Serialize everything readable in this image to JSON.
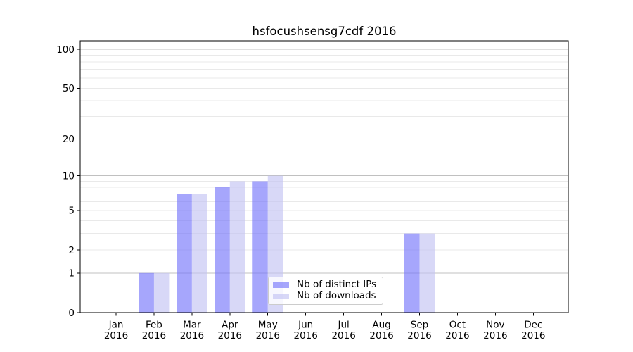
{
  "figure": {
    "background": "#ffffff"
  },
  "chart_data": {
    "type": "bar",
    "title": "hsfocushsensg7cdf 2016",
    "categories": [
      "Jan",
      "Feb",
      "Mar",
      "Apr",
      "May",
      "Jun",
      "Jul",
      "Aug",
      "Sep",
      "Oct",
      "Nov",
      "Dec"
    ],
    "x_tick_second_line": "2016",
    "series": [
      {
        "name": "Nb of distinct IPs",
        "color": "#7777fa",
        "fill_opacity": 0.65,
        "values": [
          0,
          1,
          7,
          8,
          9,
          0,
          0,
          0,
          3,
          0,
          0,
          0
        ]
      },
      {
        "name": "Nb of downloads",
        "color": "#c3c3f2",
        "fill_opacity": 0.65,
        "values": [
          0,
          1,
          7,
          9,
          10,
          0,
          0,
          0,
          3,
          0,
          0,
          0
        ]
      }
    ],
    "y_axis": {
      "scale": "log10(1+value)",
      "tick_labels": [
        100,
        50,
        20,
        10,
        5,
        2,
        1,
        0
      ],
      "major_gridlines_at": [
        1,
        10,
        100
      ],
      "minor_gridlines_at": [
        2,
        3,
        4,
        5,
        6,
        7,
        8,
        9,
        20,
        30,
        40,
        50,
        60,
        70,
        80,
        90
      ],
      "range": [
        0,
        116
      ]
    },
    "grid": {
      "major_color": "#c0c0c0",
      "minor_color": "#e9e9e9"
    },
    "axis_color": "#000000",
    "legend": {
      "position": "lower-center",
      "entries": [
        "Nb of distinct IPs",
        "Nb of downloads"
      ]
    }
  }
}
